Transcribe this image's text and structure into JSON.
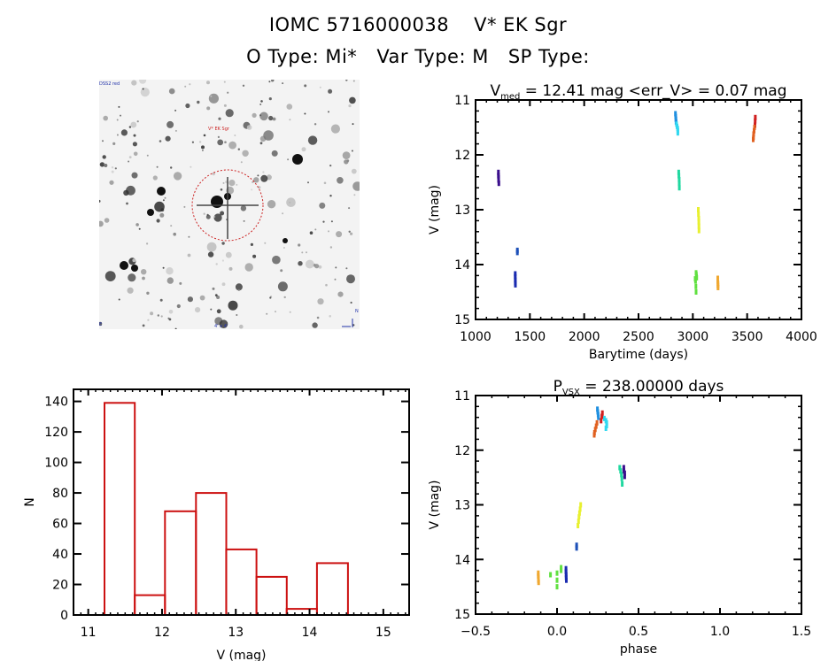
{
  "header": {
    "id_label": "IOMC 5716000038",
    "star_name": "V* EK Sgr",
    "otype_label": "O Type: Mi*",
    "vartype_label": "Var Type: M",
    "sptype_label": "SP Type:"
  },
  "sky_image": {
    "annotation_top_left": "DSS2 red",
    "annotation_target": "V* EK Sgr",
    "annotation_bottom_left": "E",
    "annotation_bottom_center": "4' x 4'",
    "annotation_bottom_right": "N",
    "circle_color": "#cc2222"
  },
  "chart_data": [
    {
      "id": "light_curve",
      "type": "scatter",
      "title_main": "V",
      "title_sub": "med",
      "title_rest": " = 12.41 mag <err_V> = 0.07 mag",
      "xlabel": "Barytime (days)",
      "ylabel": "V (mag)",
      "xlim": [
        1000,
        4000
      ],
      "ylim": [
        11,
        15
      ],
      "y_inverted": true,
      "xticks": [
        1000,
        1500,
        2000,
        2500,
        3000,
        3500,
        4000
      ],
      "yticks": [
        11,
        12,
        13,
        14,
        15
      ],
      "grid": false,
      "series": [
        {
          "name": "seg1",
          "color": "#3a0e8c",
          "x": [
            1210,
            1210,
            1212,
            1212,
            1214
          ],
          "y": [
            12.32,
            12.38,
            12.42,
            12.46,
            12.52
          ]
        },
        {
          "name": "seg2",
          "color": "#1a2bb0",
          "x": [
            1365,
            1365,
            1366,
            1366,
            1367
          ],
          "y": [
            14.17,
            14.22,
            14.28,
            14.33,
            14.37
          ]
        },
        {
          "name": "seg3",
          "color": "#1d50b8",
          "x": [
            1385,
            1385
          ],
          "y": [
            13.74,
            13.78
          ]
        },
        {
          "name": "seg4",
          "color": "#2090e0",
          "x": [
            2840,
            2842,
            2844,
            2846
          ],
          "y": [
            11.25,
            11.3,
            11.35,
            11.4
          ]
        },
        {
          "name": "seg5",
          "color": "#30d8f0",
          "x": [
            2850,
            2855,
            2860,
            2862,
            2862
          ],
          "y": [
            11.44,
            11.48,
            11.52,
            11.56,
            11.6
          ]
        },
        {
          "name": "seg6",
          "color": "#20d8a0",
          "x": [
            2870,
            2872,
            2874,
            2875,
            2876
          ],
          "y": [
            12.32,
            12.38,
            12.45,
            12.52,
            12.6
          ]
        },
        {
          "name": "seg7",
          "color": "#e8f030",
          "x": [
            3050,
            3052,
            3054,
            3055,
            3056,
            3057
          ],
          "y": [
            13.0,
            13.08,
            13.16,
            13.22,
            13.3,
            13.38
          ]
        },
        {
          "name": "seg8",
          "color": "#60e040",
          "x": [
            3030,
            3032,
            3034,
            3036,
            3022,
            3025,
            3028,
            3030
          ],
          "y": [
            14.15,
            14.18,
            14.22,
            14.24,
            14.26,
            14.3,
            14.4,
            14.5
          ]
        },
        {
          "name": "seg9",
          "color": "#f0a830",
          "x": [
            3230,
            3230,
            3231,
            3231,
            3232
          ],
          "y": [
            14.25,
            14.3,
            14.34,
            14.38,
            14.42
          ]
        },
        {
          "name": "seg10",
          "color": "#d02020",
          "x": [
            3575,
            3574,
            3572
          ],
          "y": [
            11.32,
            11.38,
            11.46
          ]
        },
        {
          "name": "seg11",
          "color": "#e06020",
          "x": [
            3568,
            3564,
            3560,
            3558,
            3556
          ],
          "y": [
            11.5,
            11.56,
            11.62,
            11.68,
            11.72
          ]
        }
      ]
    },
    {
      "id": "histogram",
      "type": "bar",
      "title": "",
      "xlabel": "V (mag)",
      "ylabel": "N",
      "xlim": [
        10.8,
        15.35
      ],
      "ylim": [
        0,
        145
      ],
      "xticks": [
        11,
        12,
        13,
        14,
        15
      ],
      "yticks": [
        0,
        20,
        40,
        60,
        80,
        100,
        120,
        140
      ],
      "bin_edges": [
        11.22,
        11.63,
        12.04,
        12.46,
        12.87,
        13.28,
        13.69,
        14.1,
        14.52
      ],
      "values": [
        139,
        13,
        68,
        80,
        43,
        25,
        4,
        34
      ],
      "color": "#cc1111",
      "grid": false
    },
    {
      "id": "phase_curve",
      "type": "scatter",
      "title_main": "P",
      "title_sub": "VSX",
      "title_rest": " = 238.00000 days",
      "xlabel": "phase",
      "ylabel": "V (mag)",
      "xlim": [
        -0.5,
        1.5
      ],
      "ylim": [
        11,
        15
      ],
      "y_inverted": true,
      "xticks": [
        -0.5,
        0.0,
        0.5,
        1.0,
        1.5
      ],
      "xtick_labels": [
        "−0.5",
        "0.0",
        "0.5",
        "1.0",
        "1.5"
      ],
      "yticks": [
        11,
        12,
        13,
        14,
        15
      ],
      "grid": false,
      "period_days": 238.0,
      "series": [
        {
          "name": "seg1",
          "color": "#3a0e8c",
          "x": [
            0.41,
            0.41,
            0.415,
            0.415
          ],
          "y": [
            12.32,
            12.38,
            12.42,
            12.48
          ]
        },
        {
          "name": "seg2",
          "color": "#1a2bb0",
          "x": [
            0.055,
            0.055,
            0.056,
            0.056,
            0.057
          ],
          "y": [
            14.17,
            14.22,
            14.28,
            14.33,
            14.38
          ]
        },
        {
          "name": "seg3",
          "color": "#1d50b8",
          "x": [
            0.12,
            0.12
          ],
          "y": [
            13.74,
            13.79
          ]
        },
        {
          "name": "seg4",
          "color": "#2090e0",
          "x": [
            0.248,
            0.25,
            0.252,
            0.254
          ],
          "y": [
            11.25,
            11.3,
            11.35,
            11.4
          ]
        },
        {
          "name": "seg5",
          "color": "#30d8f0",
          "x": [
            0.29,
            0.3,
            0.305,
            0.305,
            0.3
          ],
          "y": [
            11.42,
            11.46,
            11.5,
            11.55,
            11.6
          ]
        },
        {
          "name": "seg6",
          "color": "#20d8a0",
          "x": [
            0.385,
            0.39,
            0.395,
            0.398,
            0.4
          ],
          "y": [
            12.32,
            12.38,
            12.45,
            12.52,
            12.62
          ]
        },
        {
          "name": "seg7",
          "color": "#e8f030",
          "x": [
            0.145,
            0.142,
            0.138,
            0.135,
            0.132,
            0.128
          ],
          "y": [
            13.0,
            13.08,
            13.15,
            13.22,
            13.3,
            13.38
          ]
        },
        {
          "name": "seg8",
          "color": "#60e040",
          "x": [
            0.025,
            0.025,
            0.0,
            -0.04,
            0.0,
            0.0
          ],
          "y": [
            14.15,
            14.2,
            14.25,
            14.28,
            14.38,
            14.5
          ]
        },
        {
          "name": "seg9",
          "color": "#f0a830",
          "x": [
            -0.115,
            -0.115,
            -0.114,
            -0.114,
            -0.113
          ],
          "y": [
            14.25,
            14.3,
            14.34,
            14.38,
            14.42
          ]
        },
        {
          "name": "seg10",
          "color": "#d02020",
          "x": [
            0.278,
            0.275,
            0.27
          ],
          "y": [
            11.32,
            11.38,
            11.46
          ]
        },
        {
          "name": "seg11",
          "color": "#e06020",
          "x": [
            0.245,
            0.24,
            0.235,
            0.23,
            0.228
          ],
          "y": [
            11.5,
            11.56,
            11.62,
            11.68,
            11.72
          ]
        }
      ]
    }
  ]
}
